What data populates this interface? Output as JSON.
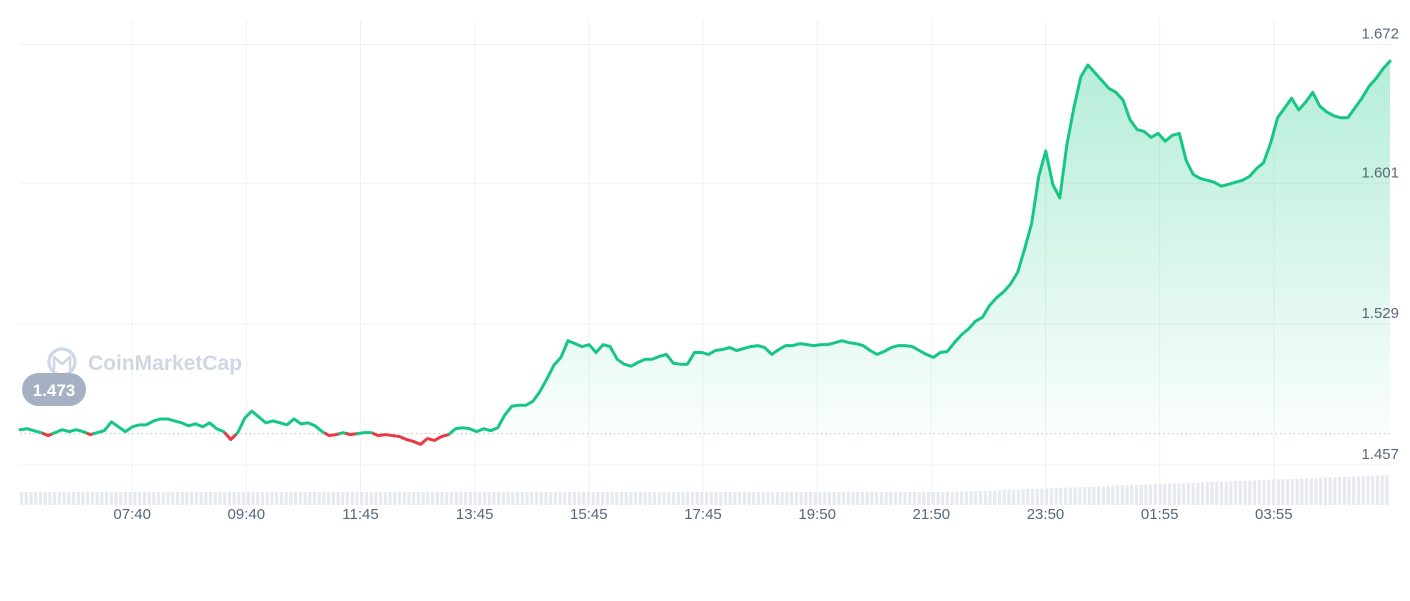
{
  "watermark": {
    "text": "CoinMarketCap",
    "icon": "coinmarketcap-logo-icon"
  },
  "colors": {
    "up": "#16c784",
    "down": "#ea3943",
    "area_top": "#16c784",
    "grid": "#eff2f5",
    "baseline": "#c7cdd6",
    "volume": "#e6e9ef",
    "badge": "#a6b0c3",
    "tick_text": "#58667e"
  },
  "chart_data": {
    "type": "line",
    "title": "",
    "xlabel": "",
    "ylabel": "",
    "baseline": 1.473,
    "start_label": "1.473",
    "ylim": [
      1.4365,
      1.6845
    ],
    "y_ticks": [
      "1.672",
      "1.601",
      "1.529",
      "1.457"
    ],
    "x_ticks": [
      "07:40",
      "09:40",
      "11:45",
      "13:45",
      "15:45",
      "17:45",
      "19:50",
      "21:50",
      "23:50",
      "01:55",
      "03:55"
    ],
    "x_range": [
      "05:40",
      "05:35"
    ],
    "grid": true,
    "series": [
      {
        "values": [
          1.475,
          1.4755,
          1.4745,
          1.4735,
          1.472,
          1.4735,
          1.475,
          1.474,
          1.475,
          1.474,
          1.4725,
          1.4735,
          1.4745,
          1.479,
          1.4765,
          1.474,
          1.4765,
          1.4775,
          1.4775,
          1.4795,
          1.4805,
          1.4805,
          1.4795,
          1.4785,
          1.477,
          1.478,
          1.4765,
          1.4785,
          1.4755,
          1.474,
          1.47,
          1.4735,
          1.481,
          1.4845,
          1.4815,
          1.4785,
          1.4795,
          1.4785,
          1.4775,
          1.4805,
          1.478,
          1.4785,
          1.477,
          1.474,
          1.472,
          1.4725,
          1.4735,
          1.4725,
          1.473,
          1.4735,
          1.4735,
          1.472,
          1.4725,
          1.472,
          1.4715,
          1.47,
          1.469,
          1.4675,
          1.4705,
          1.4695,
          1.4715,
          1.4725,
          1.4755,
          1.476,
          1.4755,
          1.474,
          1.4755,
          1.4745,
          1.476,
          1.4825,
          1.487,
          1.4875,
          1.4875,
          1.4895,
          1.4945,
          1.501,
          1.508,
          1.512,
          1.5205,
          1.519,
          1.5175,
          1.5185,
          1.5145,
          1.5185,
          1.5175,
          1.511,
          1.5085,
          1.5075,
          1.5095,
          1.511,
          1.511,
          1.5125,
          1.5135,
          1.509,
          1.5085,
          1.5085,
          1.5145,
          1.5145,
          1.5135,
          1.5155,
          1.516,
          1.517,
          1.5155,
          1.5165,
          1.5175,
          1.518,
          1.517,
          1.5135,
          1.516,
          1.518,
          1.518,
          1.519,
          1.5185,
          1.518,
          1.5185,
          1.5185,
          1.5195,
          1.5205,
          1.5195,
          1.519,
          1.518,
          1.5155,
          1.5135,
          1.515,
          1.517,
          1.518,
          1.518,
          1.5175,
          1.5155,
          1.5135,
          1.512,
          1.5145,
          1.515,
          1.5195,
          1.5235,
          1.5265,
          1.5305,
          1.5325,
          1.5385,
          1.5425,
          1.5455,
          1.5495,
          1.5555,
          1.5675,
          1.5805,
          1.6045,
          1.6175,
          1.6005,
          1.5935,
          1.6205,
          1.6395,
          1.6555,
          1.6615,
          1.6575,
          1.6535,
          1.6495,
          1.6475,
          1.6435,
          1.6335,
          1.6285,
          1.6275,
          1.6245,
          1.6265,
          1.6225,
          1.6255,
          1.6265,
          1.6125,
          1.6055,
          1.6035,
          1.6025,
          1.6015,
          1.5995,
          1.6005,
          1.6015,
          1.6025,
          1.6045,
          1.6085,
          1.6115,
          1.6215,
          1.6345,
          1.6395,
          1.6445,
          1.6385,
          1.6425,
          1.6475,
          1.6405,
          1.6375,
          1.6355,
          1.6345,
          1.6345,
          1.6395,
          1.6445,
          1.6505,
          1.6545,
          1.6595,
          1.6635
        ]
      }
    ]
  }
}
